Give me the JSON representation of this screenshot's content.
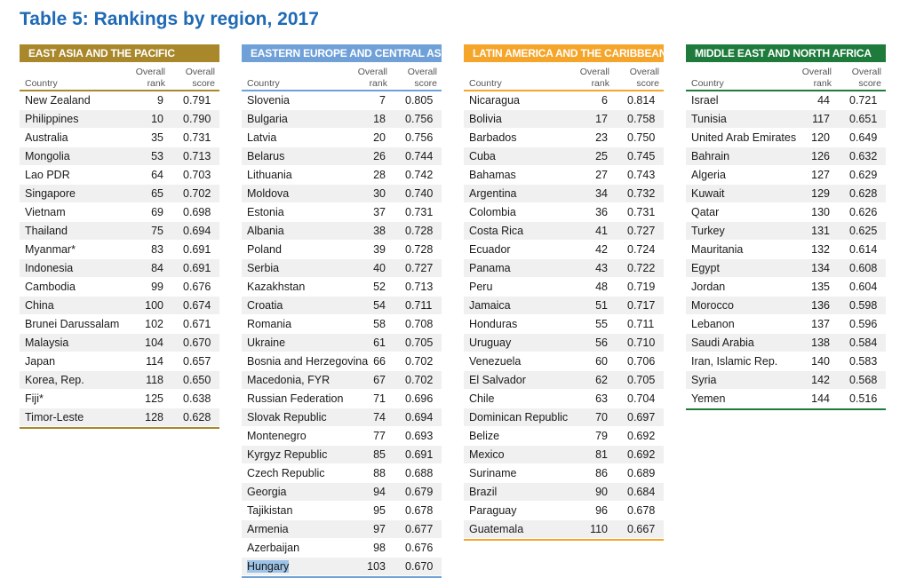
{
  "title": "Table 5: Rankings by region, 2017",
  "column_headers": {
    "country": "Country",
    "rank_line1": "Overall",
    "rank_line2": "rank",
    "score_line1": "Overall",
    "score_line2": "score"
  },
  "regions": [
    {
      "name": "EAST ASIA AND THE PACIFIC",
      "color": "#a9872b",
      "rows": [
        {
          "country": "New Zealand",
          "rank": "9",
          "score": "0.791"
        },
        {
          "country": "Philippines",
          "rank": "10",
          "score": "0.790"
        },
        {
          "country": "Australia",
          "rank": "35",
          "score": "0.731"
        },
        {
          "country": "Mongolia",
          "rank": "53",
          "score": "0.713"
        },
        {
          "country": "Lao PDR",
          "rank": "64",
          "score": "0.703"
        },
        {
          "country": "Singapore",
          "rank": "65",
          "score": "0.702"
        },
        {
          "country": "Vietnam",
          "rank": "69",
          "score": "0.698"
        },
        {
          "country": "Thailand",
          "rank": "75",
          "score": "0.694"
        },
        {
          "country": "Myanmar*",
          "rank": "83",
          "score": "0.691"
        },
        {
          "country": "Indonesia",
          "rank": "84",
          "score": "0.691"
        },
        {
          "country": "Cambodia",
          "rank": "99",
          "score": "0.676"
        },
        {
          "country": "China",
          "rank": "100",
          "score": "0.674"
        },
        {
          "country": "Brunei Darussalam",
          "rank": "102",
          "score": "0.671"
        },
        {
          "country": "Malaysia",
          "rank": "104",
          "score": "0.670"
        },
        {
          "country": "Japan",
          "rank": "114",
          "score": "0.657"
        },
        {
          "country": "Korea, Rep.",
          "rank": "118",
          "score": "0.650"
        },
        {
          "country": "Fiji*",
          "rank": "125",
          "score": "0.638"
        },
        {
          "country": "Timor-Leste",
          "rank": "128",
          "score": "0.628"
        }
      ]
    },
    {
      "name": "EASTERN EUROPE AND CENTRAL ASIA",
      "color": "#6fa1d8",
      "rows": [
        {
          "country": "Slovenia",
          "rank": "7",
          "score": "0.805"
        },
        {
          "country": "Bulgaria",
          "rank": "18",
          "score": "0.756"
        },
        {
          "country": "Latvia",
          "rank": "20",
          "score": "0.756"
        },
        {
          "country": "Belarus",
          "rank": "26",
          "score": "0.744"
        },
        {
          "country": "Lithuania",
          "rank": "28",
          "score": "0.742"
        },
        {
          "country": "Moldova",
          "rank": "30",
          "score": "0.740"
        },
        {
          "country": "Estonia",
          "rank": "37",
          "score": "0.731"
        },
        {
          "country": "Albania",
          "rank": "38",
          "score": "0.728"
        },
        {
          "country": "Poland",
          "rank": "39",
          "score": "0.728"
        },
        {
          "country": "Serbia",
          "rank": "40",
          "score": "0.727"
        },
        {
          "country": "Kazakhstan",
          "rank": "52",
          "score": "0.713"
        },
        {
          "country": "Croatia",
          "rank": "54",
          "score": "0.711"
        },
        {
          "country": "Romania",
          "rank": "58",
          "score": "0.708"
        },
        {
          "country": "Ukraine",
          "rank": "61",
          "score": "0.705"
        },
        {
          "country": "Bosnia and Herzegovina",
          "rank": "66",
          "score": "0.702"
        },
        {
          "country": "Macedonia, FYR",
          "rank": "67",
          "score": "0.702"
        },
        {
          "country": "Russian Federation",
          "rank": "71",
          "score": "0.696"
        },
        {
          "country": "Slovak Republic",
          "rank": "74",
          "score": "0.694"
        },
        {
          "country": "Montenegro",
          "rank": "77",
          "score": "0.693"
        },
        {
          "country": "Kyrgyz Republic",
          "rank": "85",
          "score": "0.691"
        },
        {
          "country": "Czech Republic",
          "rank": "88",
          "score": "0.688"
        },
        {
          "country": "Georgia",
          "rank": "94",
          "score": "0.679"
        },
        {
          "country": "Tajikistan",
          "rank": "95",
          "score": "0.678"
        },
        {
          "country": "Armenia",
          "rank": "97",
          "score": "0.677"
        },
        {
          "country": "Azerbaijan",
          "rank": "98",
          "score": "0.676"
        },
        {
          "country": "Hungary",
          "rank": "103",
          "score": "0.670",
          "highlight": true
        }
      ]
    },
    {
      "name": "LATIN AMERICA AND THE CARIBBEAN",
      "color": "#f4a52a",
      "rows": [
        {
          "country": "Nicaragua",
          "rank": "6",
          "score": "0.814"
        },
        {
          "country": "Bolivia",
          "rank": "17",
          "score": "0.758"
        },
        {
          "country": "Barbados",
          "rank": "23",
          "score": "0.750"
        },
        {
          "country": "Cuba",
          "rank": "25",
          "score": "0.745"
        },
        {
          "country": "Bahamas",
          "rank": "27",
          "score": "0.743"
        },
        {
          "country": "Argentina",
          "rank": "34",
          "score": "0.732"
        },
        {
          "country": "Colombia",
          "rank": "36",
          "score": "0.731"
        },
        {
          "country": "Costa Rica",
          "rank": "41",
          "score": "0.727"
        },
        {
          "country": "Ecuador",
          "rank": "42",
          "score": "0.724"
        },
        {
          "country": "Panama",
          "rank": "43",
          "score": "0.722"
        },
        {
          "country": "Peru",
          "rank": "48",
          "score": "0.719"
        },
        {
          "country": "Jamaica",
          "rank": "51",
          "score": "0.717"
        },
        {
          "country": "Honduras",
          "rank": "55",
          "score": "0.711"
        },
        {
          "country": "Uruguay",
          "rank": "56",
          "score": "0.710"
        },
        {
          "country": "Venezuela",
          "rank": "60",
          "score": "0.706"
        },
        {
          "country": "El Salvador",
          "rank": "62",
          "score": "0.705"
        },
        {
          "country": "Chile",
          "rank": "63",
          "score": "0.704"
        },
        {
          "country": "Dominican Republic",
          "rank": "70",
          "score": "0.697"
        },
        {
          "country": "Belize",
          "rank": "79",
          "score": "0.692"
        },
        {
          "country": "Mexico",
          "rank": "81",
          "score": "0.692"
        },
        {
          "country": "Suriname",
          "rank": "86",
          "score": "0.689"
        },
        {
          "country": "Brazil",
          "rank": "90",
          "score": "0.684"
        },
        {
          "country": "Paraguay",
          "rank": "96",
          "score": "0.678"
        },
        {
          "country": "Guatemala",
          "rank": "110",
          "score": "0.667"
        }
      ]
    },
    {
      "name": "MIDDLE EAST AND NORTH AFRICA",
      "color": "#1e7b3c",
      "rows": [
        {
          "country": "Israel",
          "rank": "44",
          "score": "0.721"
        },
        {
          "country": "Tunisia",
          "rank": "117",
          "score": "0.651"
        },
        {
          "country": "United Arab Emirates",
          "rank": "120",
          "score": "0.649"
        },
        {
          "country": "Bahrain",
          "rank": "126",
          "score": "0.632"
        },
        {
          "country": "Algeria",
          "rank": "127",
          "score": "0.629"
        },
        {
          "country": "Kuwait",
          "rank": "129",
          "score": "0.628"
        },
        {
          "country": "Qatar",
          "rank": "130",
          "score": "0.626"
        },
        {
          "country": "Turkey",
          "rank": "131",
          "score": "0.625"
        },
        {
          "country": "Mauritania",
          "rank": "132",
          "score": "0.614"
        },
        {
          "country": "Egypt",
          "rank": "134",
          "score": "0.608"
        },
        {
          "country": "Jordan",
          "rank": "135",
          "score": "0.604"
        },
        {
          "country": "Morocco",
          "rank": "136",
          "score": "0.598"
        },
        {
          "country": "Lebanon",
          "rank": "137",
          "score": "0.596"
        },
        {
          "country": "Saudi Arabia",
          "rank": "138",
          "score": "0.584"
        },
        {
          "country": "Iran, Islamic Rep.",
          "rank": "140",
          "score": "0.583"
        },
        {
          "country": "Syria",
          "rank": "142",
          "score": "0.568"
        },
        {
          "country": "Yemen",
          "rank": "144",
          "score": "0.516"
        }
      ]
    }
  ]
}
